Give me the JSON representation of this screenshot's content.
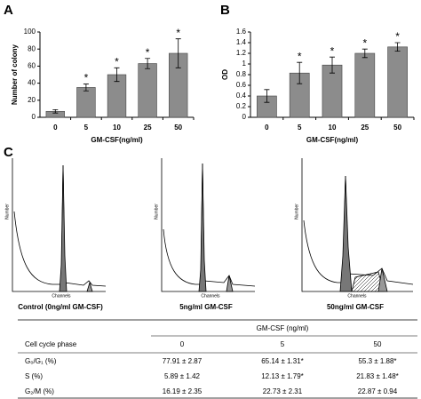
{
  "chart_data": [
    {
      "type": "bar",
      "panel": "A",
      "y_label": "Number of colony",
      "x_label": "GM-CSF(ng/ml)",
      "categories": [
        "0",
        "5",
        "10",
        "25",
        "50"
      ],
      "values": [
        7,
        35,
        50,
        63,
        75
      ],
      "errors": [
        2,
        4,
        8,
        6,
        17
      ],
      "markers": [
        null,
        "*",
        "*",
        "*",
        "*"
      ],
      "color": "#8c8c8c",
      "ylim": [
        0,
        100
      ],
      "yticks": [
        0,
        20,
        40,
        60,
        80,
        100
      ]
    },
    {
      "type": "bar",
      "panel": "B",
      "y_label": "OD",
      "x_label": "GM-CSF(ng/ml)",
      "categories": [
        "0",
        "5",
        "10",
        "25",
        "50"
      ],
      "values": [
        0.4,
        0.83,
        0.98,
        1.2,
        1.32
      ],
      "errors": [
        0.12,
        0.2,
        0.15,
        0.08,
        0.08
      ],
      "markers": [
        null,
        "*",
        "*",
        "*",
        "*"
      ],
      "color": "#8c8c8c",
      "ylim": [
        0,
        1.6
      ],
      "yticks": [
        0,
        0.2,
        0.4,
        0.6,
        0.8,
        1,
        1.2,
        1.4,
        1.6
      ]
    }
  ],
  "panel_c": {
    "label": "C",
    "histograms": [
      {
        "caption": "Control (0ng/ml GM-CSF)",
        "y_label": "Number",
        "x_label": "Channels"
      },
      {
        "caption": "5ng/ml GM-CSF",
        "y_label": "Number",
        "x_label": "Channels"
      },
      {
        "caption": "50ng/ml GM-CSF",
        "y_label": "Number",
        "x_label": "Channels"
      }
    ]
  },
  "table": {
    "group_header": "GM-CSF (ng/ml)",
    "columns": [
      "Cell cycle phase",
      "0",
      "5",
      "50"
    ],
    "rows": [
      [
        "G₀/G₁ (%)",
        "77.91 ± 2.87",
        "65.14 ± 1.31*",
        "55.3 ± 1.88*"
      ],
      [
        "S (%)",
        "5.89 ± 1.42",
        "12.13 ± 1.79*",
        "21.83 ± 1.48*"
      ],
      [
        "G₂/M (%)",
        "16.19 ± 2.35",
        "22.73 ± 2.31",
        "22.87 ± 0.94"
      ]
    ]
  }
}
